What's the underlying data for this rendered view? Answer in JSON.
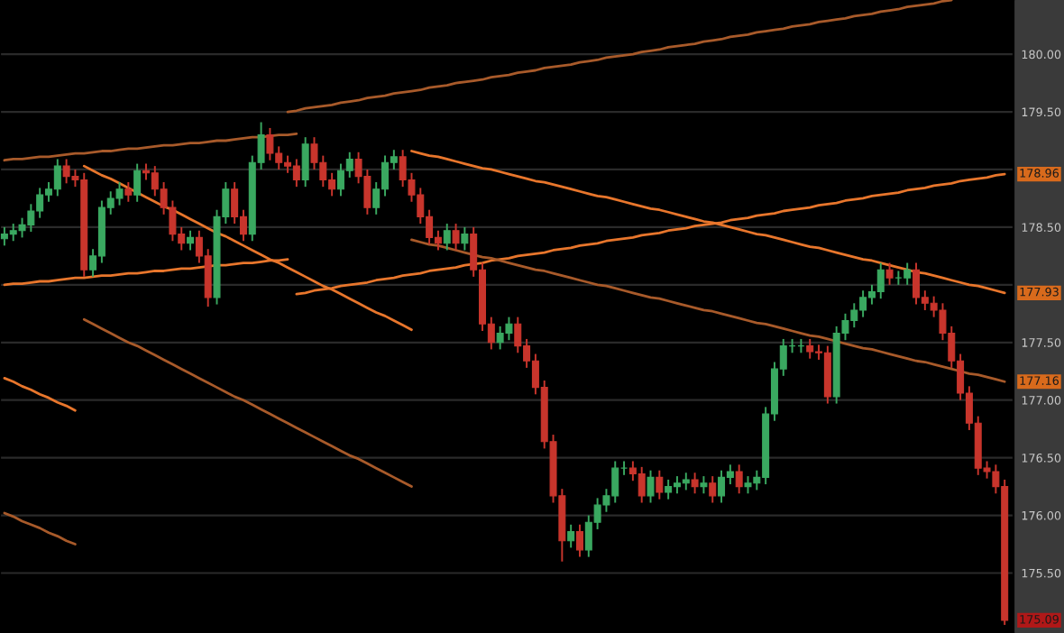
{
  "chart_data": {
    "type": "candlestick",
    "categories": [
      null,
      null,
      null,
      null,
      null,
      null,
      null,
      null,
      null,
      null,
      null,
      null,
      null,
      null,
      null,
      null,
      null,
      null,
      null,
      null,
      null,
      null,
      null,
      null,
      null,
      null,
      null,
      null,
      null,
      null,
      null,
      null,
      null,
      null,
      null,
      null,
      null,
      null,
      null,
      null,
      null,
      null,
      null,
      null,
      null,
      null,
      null,
      null,
      null,
      null,
      null,
      null,
      null,
      null,
      null,
      null,
      null,
      null,
      null,
      null,
      null,
      null,
      null,
      null,
      null,
      null,
      null,
      null,
      null,
      null,
      null,
      null,
      null,
      null,
      null,
      null,
      null,
      null,
      null,
      null,
      null,
      null,
      null,
      null,
      null,
      null,
      null,
      null,
      null,
      null,
      null,
      null,
      null,
      null,
      null,
      null,
      null,
      null,
      null,
      null,
      null,
      null,
      null,
      null,
      null,
      null,
      null,
      null,
      null,
      null,
      null,
      null,
      null,
      null
    ],
    "ohlc": [
      [
        178.4,
        178.5,
        178.34,
        178.44
      ],
      [
        178.44,
        178.53,
        178.38,
        178.47
      ],
      [
        178.47,
        178.58,
        178.41,
        178.52
      ],
      [
        178.52,
        178.7,
        178.46,
        178.64
      ],
      [
        178.64,
        178.84,
        178.58,
        178.78
      ],
      [
        178.78,
        178.89,
        178.72,
        178.83
      ],
      [
        178.83,
        179.09,
        178.77,
        179.03
      ],
      [
        179.03,
        179.09,
        178.88,
        178.94
      ],
      [
        178.94,
        179.0,
        178.85,
        178.91
      ],
      [
        178.91,
        178.97,
        178.07,
        178.13
      ],
      [
        178.13,
        178.31,
        178.07,
        178.25
      ],
      [
        178.25,
        178.73,
        178.19,
        178.67
      ],
      [
        178.67,
        178.81,
        178.61,
        178.75
      ],
      [
        178.75,
        178.89,
        178.69,
        178.83
      ],
      [
        178.83,
        178.89,
        178.72,
        178.78
      ],
      [
        178.78,
        179.05,
        178.72,
        178.99
      ],
      [
        178.99,
        179.05,
        178.91,
        178.97
      ],
      [
        178.97,
        179.03,
        178.77,
        178.83
      ],
      [
        178.83,
        178.89,
        178.61,
        178.67
      ],
      [
        178.67,
        178.73,
        178.38,
        178.44
      ],
      [
        178.44,
        178.5,
        178.3,
        178.36
      ],
      [
        178.36,
        178.47,
        178.3,
        178.41
      ],
      [
        178.41,
        178.47,
        178.19,
        178.25
      ],
      [
        178.25,
        178.31,
        177.81,
        177.89
      ],
      [
        177.89,
        178.65,
        177.83,
        178.59
      ],
      [
        178.59,
        178.89,
        178.53,
        178.83
      ],
      [
        178.83,
        178.89,
        178.53,
        178.59
      ],
      [
        178.59,
        178.65,
        178.38,
        178.44
      ],
      [
        178.44,
        179.12,
        178.38,
        179.06
      ],
      [
        179.06,
        179.41,
        179.0,
        179.3
      ],
      [
        179.3,
        179.36,
        179.08,
        179.14
      ],
      [
        179.14,
        179.2,
        179.0,
        179.06
      ],
      [
        179.06,
        179.12,
        178.97,
        179.03
      ],
      [
        179.03,
        179.09,
        178.85,
        178.91
      ],
      [
        178.91,
        179.28,
        178.85,
        179.22
      ],
      [
        179.22,
        179.28,
        179.0,
        179.06
      ],
      [
        179.06,
        179.12,
        178.85,
        178.91
      ],
      [
        178.91,
        178.97,
        178.77,
        178.83
      ],
      [
        178.83,
        179.05,
        178.77,
        178.99
      ],
      [
        178.99,
        179.15,
        178.93,
        179.09
      ],
      [
        179.09,
        179.15,
        178.88,
        178.94
      ],
      [
        178.94,
        179.0,
        178.61,
        178.67
      ],
      [
        178.67,
        178.89,
        178.61,
        178.83
      ],
      [
        178.83,
        179.12,
        178.77,
        179.06
      ],
      [
        179.06,
        179.17,
        179.0,
        179.11
      ],
      [
        179.11,
        179.17,
        178.85,
        178.91
      ],
      [
        178.91,
        178.97,
        178.72,
        178.78
      ],
      [
        178.78,
        178.84,
        178.53,
        178.59
      ],
      [
        178.59,
        178.65,
        178.35,
        178.41
      ],
      [
        178.41,
        178.47,
        178.3,
        178.36
      ],
      [
        178.36,
        178.53,
        178.3,
        178.47
      ],
      [
        178.47,
        178.53,
        178.3,
        178.36
      ],
      [
        178.36,
        178.5,
        178.3,
        178.44
      ],
      [
        178.44,
        178.5,
        178.07,
        178.13
      ],
      [
        178.13,
        178.19,
        177.6,
        177.66
      ],
      [
        177.66,
        177.72,
        177.44,
        177.5
      ],
      [
        177.5,
        177.64,
        177.44,
        177.58
      ],
      [
        177.58,
        177.72,
        177.52,
        177.66
      ],
      [
        177.66,
        177.72,
        177.41,
        177.47
      ],
      [
        177.47,
        177.53,
        177.28,
        177.34
      ],
      [
        177.34,
        177.4,
        177.05,
        177.11
      ],
      [
        177.11,
        177.17,
        176.58,
        176.64
      ],
      [
        176.64,
        176.7,
        176.11,
        176.17
      ],
      [
        176.17,
        176.23,
        175.6,
        175.78
      ],
      [
        175.78,
        175.92,
        175.72,
        175.86
      ],
      [
        175.86,
        175.92,
        175.64,
        175.7
      ],
      [
        175.7,
        176.0,
        175.64,
        175.94
      ],
      [
        175.94,
        176.15,
        175.88,
        176.09
      ],
      [
        176.09,
        176.23,
        176.03,
        176.17
      ],
      [
        176.17,
        176.47,
        176.11,
        176.41
      ],
      [
        176.41,
        176.47,
        176.35,
        176.41
      ],
      [
        176.41,
        176.47,
        176.3,
        176.36
      ],
      [
        176.36,
        176.42,
        176.11,
        176.17
      ],
      [
        176.17,
        176.39,
        176.11,
        176.33
      ],
      [
        176.33,
        176.39,
        176.14,
        176.2
      ],
      [
        176.2,
        176.31,
        176.14,
        176.25
      ],
      [
        176.25,
        176.34,
        176.19,
        176.28
      ],
      [
        176.28,
        176.37,
        176.22,
        176.31
      ],
      [
        176.31,
        176.37,
        176.19,
        176.25
      ],
      [
        176.25,
        176.34,
        176.19,
        176.28
      ],
      [
        176.28,
        176.34,
        176.11,
        176.17
      ],
      [
        176.17,
        176.39,
        176.11,
        176.33
      ],
      [
        176.33,
        176.44,
        176.27,
        176.38
      ],
      [
        176.38,
        176.44,
        176.19,
        176.25
      ],
      [
        176.25,
        176.34,
        176.19,
        176.28
      ],
      [
        176.28,
        176.39,
        176.22,
        176.33
      ],
      [
        176.33,
        176.94,
        176.27,
        176.88
      ],
      [
        176.88,
        177.33,
        176.82,
        177.27
      ],
      [
        177.27,
        177.53,
        177.21,
        177.47
      ],
      [
        177.47,
        177.53,
        177.41,
        177.47
      ],
      [
        177.47,
        177.53,
        177.41,
        177.47
      ],
      [
        177.47,
        177.53,
        177.36,
        177.42
      ],
      [
        177.42,
        177.48,
        177.35,
        177.41
      ],
      [
        177.41,
        177.47,
        176.97,
        177.03
      ],
      [
        177.03,
        177.64,
        176.97,
        177.58
      ],
      [
        177.58,
        177.75,
        177.52,
        177.69
      ],
      [
        177.69,
        177.84,
        177.63,
        177.78
      ],
      [
        177.78,
        177.95,
        177.72,
        177.89
      ],
      [
        177.89,
        178.0,
        177.83,
        177.94
      ],
      [
        177.94,
        178.19,
        177.88,
        178.13
      ],
      [
        178.13,
        178.19,
        178.0,
        178.06
      ],
      [
        178.06,
        178.12,
        178.0,
        178.06
      ],
      [
        178.06,
        178.19,
        178.0,
        178.13
      ],
      [
        178.13,
        178.19,
        177.83,
        177.89
      ],
      [
        177.89,
        177.95,
        177.78,
        177.84
      ],
      [
        177.84,
        177.9,
        177.72,
        177.78
      ],
      [
        177.78,
        177.84,
        177.52,
        177.58
      ],
      [
        177.58,
        177.64,
        177.28,
        177.34
      ],
      [
        177.34,
        177.4,
        177.0,
        177.06
      ],
      [
        177.06,
        177.12,
        176.74,
        176.8
      ],
      [
        176.8,
        176.86,
        176.35,
        176.41
      ],
      [
        176.41,
        176.47,
        176.32,
        176.38
      ],
      [
        176.38,
        176.44,
        176.19,
        176.25
      ],
      [
        176.25,
        176.31,
        175.05,
        175.09
      ]
    ],
    "series": [
      {
        "type": "line",
        "color": "#a85a2a",
        "values": [
          179.08,
          179.09,
          179.09,
          179.1,
          179.11,
          179.11,
          179.12,
          179.13,
          179.14,
          179.14,
          179.15,
          179.16,
          179.16,
          179.17,
          179.18,
          179.18,
          179.19,
          179.2,
          179.21,
          179.21,
          179.22,
          179.23,
          179.23,
          179.24,
          179.25,
          179.25,
          179.26,
          179.27,
          179.28,
          179.28,
          179.29,
          179.3,
          179.3,
          179.31,
          null,
          null,
          null,
          null,
          null,
          null,
          null,
          null,
          null,
          null,
          null,
          null,
          null,
          null,
          null,
          null,
          null,
          null,
          null,
          null,
          null,
          null,
          null,
          null,
          null,
          null,
          null,
          null,
          null,
          null,
          null,
          null,
          null,
          null,
          null,
          null,
          null,
          null,
          null,
          null,
          null,
          null,
          null,
          null,
          null,
          null,
          null,
          null,
          null,
          null,
          null,
          null,
          null,
          null,
          null,
          null,
          null,
          null,
          null,
          null,
          null,
          null,
          null,
          null,
          null,
          null,
          null,
          null,
          null,
          null,
          null,
          null,
          null,
          null,
          null,
          null,
          null,
          null,
          null,
          null
        ]
      },
      {
        "type": "line",
        "color": "#a85a2a",
        "values": [
          null,
          null,
          null,
          null,
          null,
          null,
          null,
          null,
          null,
          null,
          null,
          null,
          null,
          null,
          null,
          null,
          null,
          null,
          null,
          null,
          null,
          null,
          null,
          null,
          null,
          null,
          null,
          null,
          null,
          null,
          null,
          null,
          179.5,
          179.51,
          179.53,
          179.54,
          179.55,
          179.56,
          179.58,
          179.59,
          179.6,
          179.62,
          179.63,
          179.64,
          179.66,
          179.67,
          179.68,
          179.69,
          179.71,
          179.72,
          179.73,
          179.75,
          179.76,
          179.77,
          179.78,
          179.8,
          179.81,
          179.82,
          179.84,
          179.85,
          179.86,
          179.88,
          179.89,
          179.9,
          179.91,
          179.93,
          179.94,
          179.95,
          179.97,
          179.98,
          179.99,
          180.0,
          180.02,
          180.03,
          180.04,
          180.06,
          180.07,
          180.08,
          180.09,
          180.11,
          180.12,
          180.13,
          180.15,
          180.16,
          180.17,
          180.19,
          180.2,
          180.21,
          180.22,
          180.24,
          180.25,
          180.26,
          180.28,
          180.29,
          180.3,
          180.31,
          180.33,
          180.34,
          180.35,
          180.37,
          180.38,
          180.39,
          180.41,
          180.42,
          180.43,
          180.44,
          180.46,
          180.47,
          null,
          null,
          null,
          null,
          null,
          null
        ]
      },
      {
        "type": "line",
        "color": "#e8762c",
        "values": [
          178.0,
          178.01,
          178.01,
          178.02,
          178.03,
          178.03,
          178.04,
          178.05,
          178.06,
          178.06,
          178.07,
          178.08,
          178.08,
          178.09,
          178.1,
          178.1,
          178.11,
          178.12,
          178.12,
          178.13,
          178.14,
          178.14,
          178.15,
          178.16,
          178.17,
          178.17,
          178.18,
          178.19,
          178.19,
          178.2,
          178.21,
          178.21,
          178.22,
          null,
          null,
          null,
          null,
          null,
          null,
          null,
          null,
          null,
          null,
          null,
          null,
          null,
          null,
          null,
          null,
          null,
          null,
          null,
          null,
          null,
          null,
          null,
          null,
          null,
          null,
          null,
          null,
          null,
          null,
          null,
          null,
          null,
          null,
          null,
          null,
          null,
          null,
          null,
          null,
          null,
          null,
          null,
          null,
          null,
          null,
          null,
          null,
          null,
          null,
          null,
          null,
          null,
          null,
          null,
          null,
          null,
          null,
          null,
          null,
          null,
          null,
          null,
          null,
          null,
          null,
          null,
          null,
          null,
          null,
          null,
          null,
          null,
          null,
          null,
          null,
          null,
          null,
          null,
          null,
          null
        ]
      },
      {
        "type": "line",
        "color": "#e8762c",
        "values": [
          null,
          null,
          null,
          null,
          null,
          null,
          null,
          null,
          null,
          179.03,
          178.99,
          178.95,
          178.92,
          178.88,
          178.84,
          178.8,
          178.76,
          178.72,
          178.68,
          178.65,
          178.61,
          178.57,
          178.53,
          178.49,
          178.45,
          178.42,
          178.38,
          178.34,
          178.3,
          178.26,
          178.22,
          178.19,
          178.15,
          178.11,
          178.07,
          178.03,
          177.99,
          177.96,
          177.92,
          177.88,
          177.84,
          177.8,
          177.76,
          177.73,
          177.69,
          177.65,
          177.61,
          null,
          null,
          null,
          null,
          null,
          null,
          null,
          null,
          null,
          null,
          null,
          null,
          null,
          null,
          null,
          null,
          null,
          null,
          null,
          null,
          null,
          null,
          null,
          null,
          null,
          null,
          null,
          null,
          null,
          null,
          null,
          null,
          null,
          null,
          null,
          null,
          null,
          null,
          null,
          null,
          null,
          null,
          null,
          null,
          null,
          null,
          null,
          null,
          null,
          null,
          null,
          null,
          null,
          null,
          null,
          null,
          null,
          null,
          null,
          null,
          null,
          null,
          null,
          null,
          null,
          null,
          null
        ]
      },
      {
        "type": "line",
        "color": "#e8762c",
        "values": [
          null,
          null,
          null,
          null,
          null,
          null,
          null,
          null,
          null,
          null,
          null,
          null,
          null,
          null,
          null,
          null,
          null,
          null,
          null,
          null,
          null,
          null,
          null,
          null,
          null,
          null,
          null,
          null,
          null,
          null,
          null,
          null,
          null,
          177.92,
          177.93,
          177.95,
          177.96,
          177.97,
          177.99,
          178.0,
          178.01,
          178.02,
          178.04,
          178.05,
          178.06,
          178.08,
          178.09,
          178.1,
          178.12,
          178.13,
          178.14,
          178.15,
          178.17,
          178.18,
          178.19,
          178.21,
          178.22,
          178.23,
          178.25,
          178.26,
          178.27,
          178.28,
          178.3,
          178.31,
          178.32,
          178.34,
          178.35,
          178.36,
          178.38,
          178.39,
          178.4,
          178.41,
          178.43,
          178.44,
          178.45,
          178.47,
          178.48,
          178.49,
          178.51,
          178.52,
          178.53,
          178.54,
          178.56,
          178.57,
          178.58,
          178.6,
          178.61,
          178.62,
          178.64,
          178.65,
          178.66,
          178.67,
          178.69,
          178.7,
          178.71,
          178.73,
          178.74,
          178.75,
          178.77,
          178.78,
          178.79,
          178.8,
          178.82,
          178.83,
          178.84,
          178.86,
          178.87,
          178.88,
          178.9,
          178.91,
          178.92,
          178.93,
          178.95,
          178.96
        ]
      },
      {
        "type": "line",
        "color": "#e8762c",
        "values": [
          null,
          null,
          null,
          null,
          null,
          null,
          null,
          null,
          null,
          null,
          null,
          null,
          null,
          null,
          null,
          null,
          null,
          null,
          null,
          null,
          null,
          null,
          null,
          null,
          null,
          null,
          null,
          null,
          null,
          null,
          null,
          null,
          null,
          null,
          null,
          null,
          null,
          null,
          null,
          null,
          null,
          null,
          null,
          null,
          null,
          null,
          179.16,
          179.14,
          179.12,
          179.11,
          179.09,
          179.07,
          179.05,
          179.03,
          179.01,
          179.0,
          178.98,
          178.96,
          178.94,
          178.92,
          178.9,
          178.89,
          178.87,
          178.85,
          178.83,
          178.81,
          178.79,
          178.77,
          178.76,
          178.74,
          178.72,
          178.7,
          178.68,
          178.66,
          178.65,
          178.63,
          178.61,
          178.59,
          178.57,
          178.55,
          178.54,
          178.52,
          178.5,
          178.48,
          178.46,
          178.44,
          178.43,
          178.41,
          178.39,
          178.37,
          178.35,
          178.33,
          178.32,
          178.3,
          178.28,
          178.26,
          178.24,
          178.22,
          178.21,
          178.19,
          178.17,
          178.15,
          178.13,
          178.11,
          178.1,
          178.08,
          178.06,
          178.04,
          178.02,
          178.0,
          177.99,
          177.97,
          177.95,
          177.93
        ]
      },
      {
        "type": "line",
        "color": "#a85a2a",
        "values": [
          null,
          null,
          null,
          null,
          null,
          null,
          null,
          null,
          null,
          null,
          null,
          null,
          null,
          null,
          null,
          null,
          null,
          null,
          null,
          null,
          null,
          null,
          null,
          null,
          null,
          null,
          null,
          null,
          null,
          null,
          null,
          null,
          null,
          null,
          null,
          null,
          null,
          null,
          null,
          null,
          null,
          null,
          null,
          null,
          null,
          null,
          178.39,
          178.37,
          178.35,
          178.34,
          178.32,
          178.3,
          178.28,
          178.26,
          178.24,
          178.23,
          178.21,
          178.19,
          178.17,
          178.15,
          178.13,
          178.12,
          178.1,
          178.08,
          178.06,
          178.04,
          178.02,
          178.0,
          177.99,
          177.97,
          177.95,
          177.93,
          177.91,
          177.89,
          177.88,
          177.86,
          177.84,
          177.82,
          177.8,
          177.78,
          177.77,
          177.75,
          177.73,
          177.71,
          177.69,
          177.67,
          177.66,
          177.64,
          177.62,
          177.6,
          177.58,
          177.56,
          177.55,
          177.53,
          177.51,
          177.49,
          177.47,
          177.45,
          177.44,
          177.42,
          177.4,
          177.38,
          177.36,
          177.34,
          177.33,
          177.31,
          177.29,
          177.27,
          177.25,
          177.23,
          177.22,
          177.2,
          177.18,
          177.16
        ]
      },
      {
        "type": "line",
        "color": "#a85a2a",
        "values": [
          null,
          null,
          null,
          null,
          null,
          null,
          null,
          null,
          null,
          177.7,
          177.66,
          177.62,
          177.58,
          177.54,
          177.5,
          177.47,
          177.43,
          177.39,
          177.35,
          177.31,
          177.27,
          177.23,
          177.19,
          177.15,
          177.11,
          177.07,
          177.03,
          177.0,
          176.96,
          176.92,
          176.88,
          176.84,
          176.8,
          176.76,
          176.72,
          176.68,
          176.64,
          176.6,
          176.56,
          176.52,
          176.49,
          176.45,
          176.41,
          176.37,
          176.33,
          176.29,
          176.25,
          null,
          null,
          null,
          null,
          null,
          null,
          null,
          null,
          null,
          null,
          null,
          null,
          null,
          null,
          null,
          null,
          null,
          null,
          null,
          null,
          null,
          null,
          null,
          null,
          null,
          null,
          null,
          null,
          null,
          null,
          null,
          null,
          null,
          null,
          null,
          null,
          null,
          null,
          null,
          null,
          null,
          null,
          null,
          null,
          null,
          null,
          null,
          null,
          null,
          null,
          null,
          null,
          null,
          null,
          null,
          null,
          null,
          null,
          null,
          null,
          null,
          null,
          null,
          null,
          null,
          null,
          null
        ]
      },
      {
        "type": "line",
        "color": "#e8762c",
        "values": [
          177.19,
          177.16,
          177.12,
          177.09,
          177.05,
          177.02,
          176.98,
          176.95,
          176.91,
          null,
          null,
          null,
          null,
          null,
          null,
          null,
          null,
          null,
          null,
          null,
          null,
          null,
          null,
          null,
          null,
          null,
          null,
          null,
          null,
          null,
          null,
          null,
          null,
          null,
          null,
          null,
          null,
          null,
          null,
          null,
          null,
          null,
          null,
          null,
          null,
          null,
          null,
          null,
          null,
          null,
          null,
          null,
          null,
          null,
          null,
          null,
          null,
          null,
          null,
          null,
          null,
          null,
          null,
          null,
          null,
          null,
          null,
          null,
          null,
          null,
          null,
          null,
          null,
          null,
          null,
          null,
          null,
          null,
          null,
          null,
          null,
          null,
          null,
          null,
          null,
          null,
          null,
          null,
          null,
          null,
          null,
          null,
          null,
          null,
          null,
          null,
          null,
          null,
          null,
          null,
          null,
          null,
          null,
          null,
          null,
          null,
          null,
          null,
          null,
          null,
          null,
          null,
          null,
          null
        ]
      },
      {
        "type": "line",
        "color": "#a85a2a",
        "values": [
          176.02,
          175.99,
          175.95,
          175.92,
          175.89,
          175.85,
          175.82,
          175.78,
          175.75,
          null,
          null,
          null,
          null,
          null,
          null,
          null,
          null,
          null,
          null,
          null,
          null,
          null,
          null,
          null,
          null,
          null,
          null,
          null,
          null,
          null,
          null,
          null,
          null,
          null,
          null,
          null,
          null,
          null,
          null,
          null,
          null,
          null,
          null,
          null,
          null,
          null,
          null,
          null,
          null,
          null,
          null,
          null,
          null,
          null,
          null,
          null,
          null,
          null,
          null,
          null,
          null,
          null,
          null,
          null,
          null,
          null,
          null,
          null,
          null,
          null,
          null,
          null,
          null,
          null,
          null,
          null,
          null,
          null,
          null,
          null,
          null,
          null,
          null,
          null,
          null,
          null,
          null,
          null,
          null,
          null,
          null,
          null,
          null,
          null,
          null,
          null,
          null,
          null,
          null,
          null,
          null,
          null,
          null,
          null,
          null,
          null,
          null,
          null,
          null,
          null,
          null,
          null,
          null,
          null
        ]
      }
    ],
    "ylim": [
      174.98,
      180.47
    ],
    "yticks": [
      {
        "value": 175.5,
        "label": "175.50"
      },
      {
        "value": 176,
        "label": "176.00"
      },
      {
        "value": 176.5,
        "label": "176.50"
      },
      {
        "value": 177,
        "label": "177.00"
      },
      {
        "value": 177.5,
        "label": "177.50"
      },
      {
        "value": 178,
        "label": null
      },
      {
        "value": 178.5,
        "label": "178.50"
      },
      {
        "value": 179,
        "label": null
      },
      {
        "value": 179.5,
        "label": "179.50"
      },
      {
        "value": 180,
        "label": "180.00"
      }
    ],
    "tick_labels": "y",
    "grid": "y",
    "annotations": [
      {
        "text": "178.96",
        "y": 178.96
      },
      {
        "text": "177.93",
        "y": 177.93
      },
      {
        "text": "177.16",
        "y": 177.16
      },
      {
        "text": "175.09",
        "y": 175.09
      }
    ]
  }
}
